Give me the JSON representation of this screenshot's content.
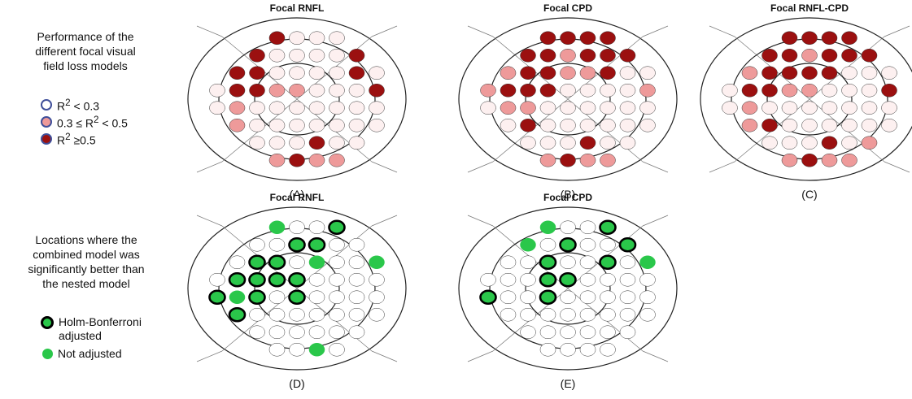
{
  "performance_legend": {
    "title": "Performance of the\ndifferent focal visual\nfield loss models",
    "items": [
      {
        "key": "low",
        "label_html": "R<sup>2</sup> &lt; 0.3"
      },
      {
        "key": "mid",
        "label_html": "0.3 ≤ R<sup>2</sup> &lt; 0.5"
      },
      {
        "key": "high",
        "label_html": "R<sup>2</sup> ≥0.5"
      }
    ]
  },
  "significance_legend": {
    "title": "Locations where the\ncombined model was\nsignificantly better than\nthe nested model",
    "items": [
      {
        "key": "holm",
        "label": "Holm-Bonferroni\nadjusted"
      },
      {
        "key": "not",
        "label": "Not adjusted"
      }
    ]
  },
  "colors": {
    "low": "#fdf0f0",
    "mid": "#ee9a9a",
    "high": "#9b1010",
    "none": "#ffffff",
    "green": "#2ac74a"
  },
  "rows": [
    [
      3,
      4,
      5,
      6
    ],
    [
      2,
      3,
      4,
      5,
      6,
      7
    ],
    [
      1,
      2,
      3,
      4,
      5,
      6,
      7,
      8
    ],
    [
      0,
      1,
      2,
      3,
      4,
      5,
      6,
      7,
      8
    ],
    [
      0,
      1,
      2,
      3,
      4,
      5,
      6,
      7,
      8
    ],
    [
      1,
      2,
      3,
      4,
      5,
      6,
      7,
      8
    ],
    [
      2,
      3,
      4,
      5,
      6,
      7
    ],
    [
      3,
      4,
      5,
      6
    ]
  ],
  "panels": [
    {
      "id": "A",
      "title": "Focal RNFL",
      "label": "(A)",
      "kind": "performance",
      "values": [
        "HLLL",
        "HLLLLH",
        "HHLLLLHL",
        "LHHMMLLLH",
        "LMLLLLLLL",
        "MLLLLLLL",
        "LLLHLL",
        "MHMM"
      ]
    },
    {
      "id": "B",
      "title": "Focal CPD",
      "label": "(B)",
      "kind": "performance",
      "values": [
        "HHHH",
        "HHMHHH",
        "MHHMMHLL",
        "MHHHLLLLM",
        "LMMLLLLLL",
        "LHLLLLLL",
        "LLLHLL",
        "MHMM"
      ]
    },
    {
      "id": "C",
      "title": "Focal RNFL-CPD",
      "label": "(C)",
      "kind": "performance",
      "values": [
        "HHHH",
        "HHMHHH",
        "MHHHHLLL",
        "LHHMMLLLH",
        "LMLLLLLLL",
        "MHLLLLLL",
        "LLLHLM",
        "MHMM"
      ]
    },
    {
      "id": "D",
      "title": "Focal RNFL",
      "label": "(D)",
      "kind": "significance",
      "values": [
        "G..H",
        "..HH..",
        ".HH.G..G",
        ".HHHH....",
        "HGH.H....",
        "H.......",
        "......",
        "..G."
      ]
    },
    {
      "id": "E",
      "title": "Focal CPD",
      "label": "(E)",
      "kind": "significance",
      "values": [
        "G..H",
        "G.H..H",
        "..H..H.G",
        "...HH....",
        "H..H.....",
        "........",
        "......",
        "...."
      ]
    }
  ]
}
